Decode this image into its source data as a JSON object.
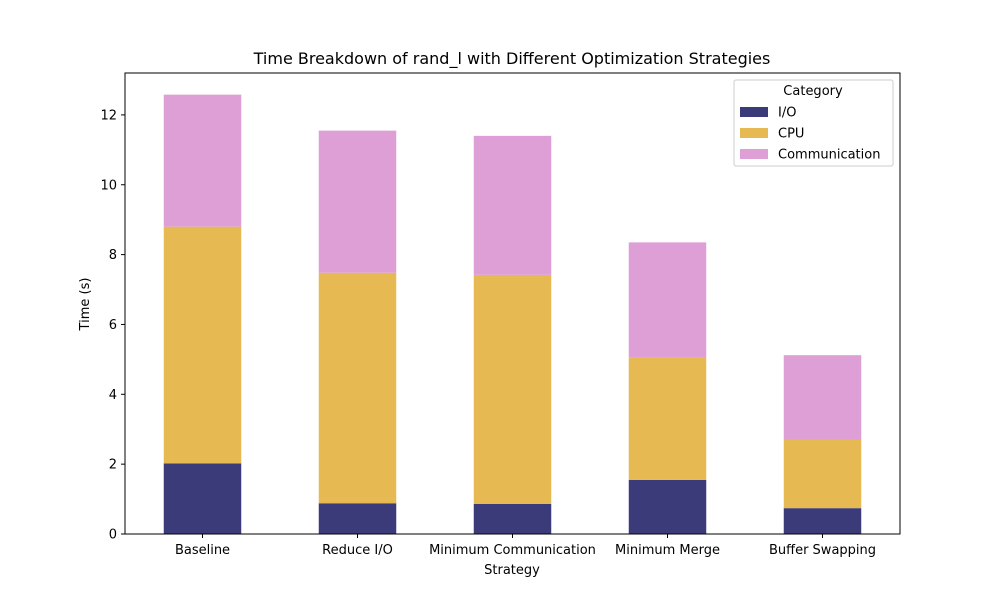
{
  "chart_data": {
    "type": "bar",
    "stacked": true,
    "title": "Time Breakdown of rand_l with Different Optimization Strategies",
    "xlabel": "Strategy",
    "ylabel": "Time (s)",
    "categories": [
      "Baseline",
      "Reduce I/O",
      "Minimum Communication",
      "Minimum Merge",
      "Buffer Swapping"
    ],
    "series": [
      {
        "name": "I/O",
        "color": "#3b3b7a",
        "values": [
          2.02,
          0.88,
          0.86,
          1.55,
          0.74
        ]
      },
      {
        "name": "CPU",
        "color": "#e6b952",
        "values": [
          6.78,
          6.6,
          6.56,
          3.5,
          1.98
        ]
      },
      {
        "name": "Communication",
        "color": "#dd9fd6",
        "values": [
          3.78,
          4.07,
          3.98,
          3.3,
          2.4
        ]
      }
    ],
    "ylim": [
      0,
      13.2
    ],
    "yticks": [
      "0",
      "2",
      "4",
      "6",
      "8",
      "10",
      "12"
    ],
    "legend": {
      "title": "Category",
      "position": "top-right"
    },
    "grid": false
  }
}
